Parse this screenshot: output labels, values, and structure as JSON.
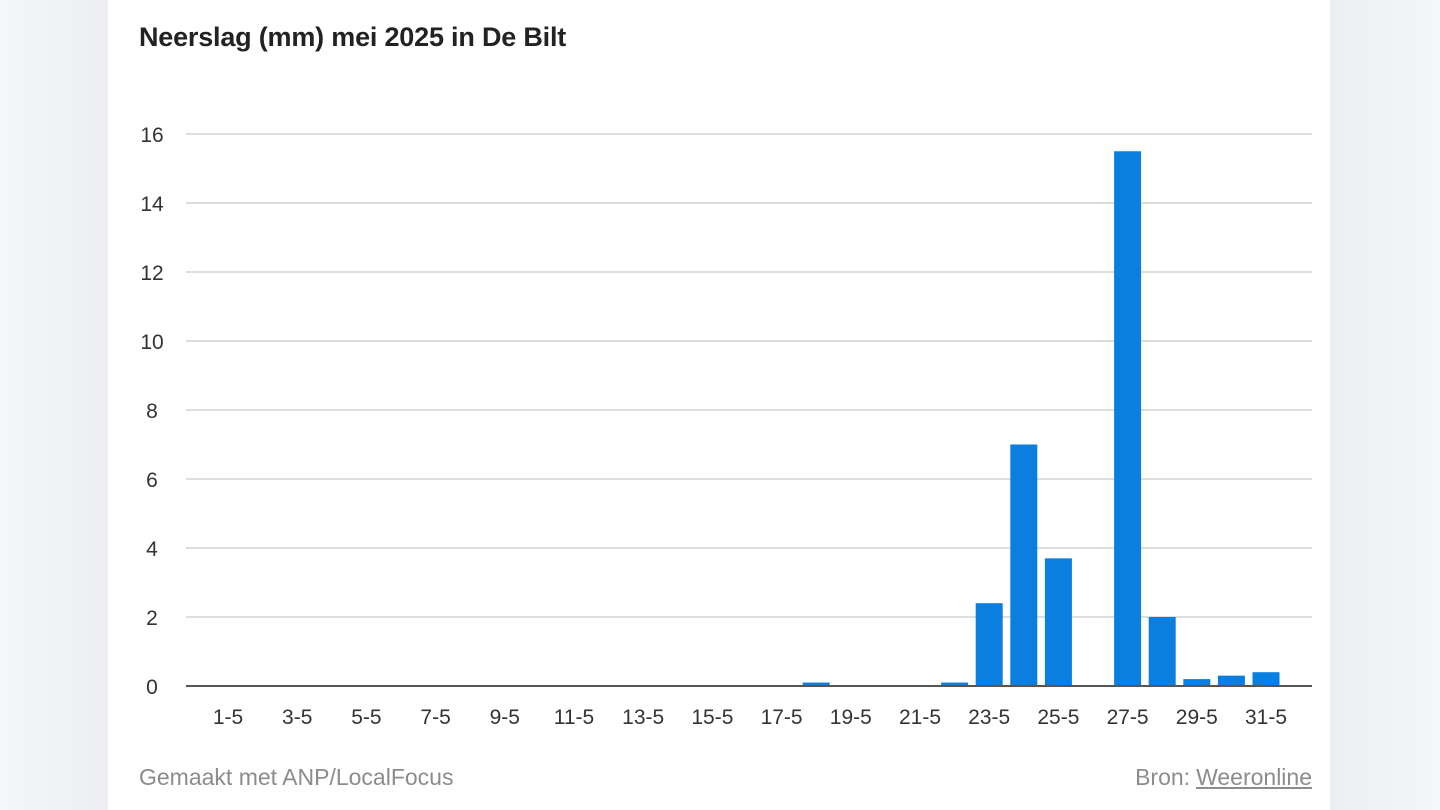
{
  "chart_data": {
    "type": "bar",
    "title": "Neerslag (mm) mei 2025 in De Bilt",
    "xlabel": "",
    "ylabel": "",
    "categories": [
      "1-5",
      "2-5",
      "3-5",
      "4-5",
      "5-5",
      "6-5",
      "7-5",
      "8-5",
      "9-5",
      "10-5",
      "11-5",
      "12-5",
      "13-5",
      "14-5",
      "15-5",
      "16-5",
      "17-5",
      "18-5",
      "19-5",
      "20-5",
      "21-5",
      "22-5",
      "23-5",
      "24-5",
      "25-5",
      "26-5",
      "27-5",
      "28-5",
      "29-5",
      "30-5",
      "31-5"
    ],
    "x_tick_labels": [
      "1-5",
      "3-5",
      "5-5",
      "7-5",
      "9-5",
      "11-5",
      "13-5",
      "15-5",
      "17-5",
      "19-5",
      "21-5",
      "23-5",
      "25-5",
      "27-5",
      "29-5",
      "31-5"
    ],
    "values": [
      0,
      0,
      0,
      0,
      0,
      0,
      0,
      0,
      0,
      0,
      0,
      0,
      0,
      0,
      0,
      0,
      0,
      0.1,
      0,
      0,
      0,
      0.1,
      2.4,
      7.0,
      3.7,
      0,
      15.5,
      2.0,
      0.2,
      0.3,
      0.4
    ],
    "ylim": [
      0,
      16
    ],
    "y_ticks": [
      0,
      2,
      4,
      6,
      8,
      10,
      12,
      14,
      16
    ],
    "grid": true,
    "bar_color": "#0b7fe0"
  },
  "footer": {
    "credit": "Gemaakt met ANP/LocalFocus",
    "source_label": "Bron:",
    "source_link": "Weeronline"
  }
}
